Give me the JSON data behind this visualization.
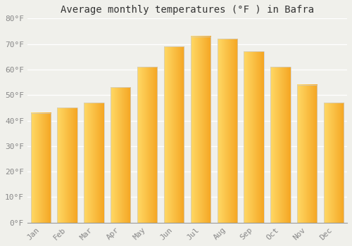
{
  "title": "Average monthly temperatures (°F ) in Bafra",
  "months": [
    "Jan",
    "Feb",
    "Mar",
    "Apr",
    "May",
    "Jun",
    "Jul",
    "Aug",
    "Sep",
    "Oct",
    "Nov",
    "Dec"
  ],
  "values": [
    43,
    45,
    47,
    53,
    61,
    69,
    73,
    72,
    67,
    61,
    54,
    47
  ],
  "bar_color_left": "#FFD966",
  "bar_color_right": "#F5A623",
  "bar_edge_color": "#cccccc",
  "ylim": [
    0,
    80
  ],
  "yticks": [
    0,
    10,
    20,
    30,
    40,
    50,
    60,
    70,
    80
  ],
  "ytick_labels": [
    "0°F",
    "10°F",
    "20°F",
    "30°F",
    "40°F",
    "50°F",
    "60°F",
    "70°F",
    "80°F"
  ],
  "background_color": "#f0f0eb",
  "grid_color": "#e8e8e8",
  "title_fontsize": 10,
  "tick_fontsize": 8,
  "font_family": "monospace"
}
